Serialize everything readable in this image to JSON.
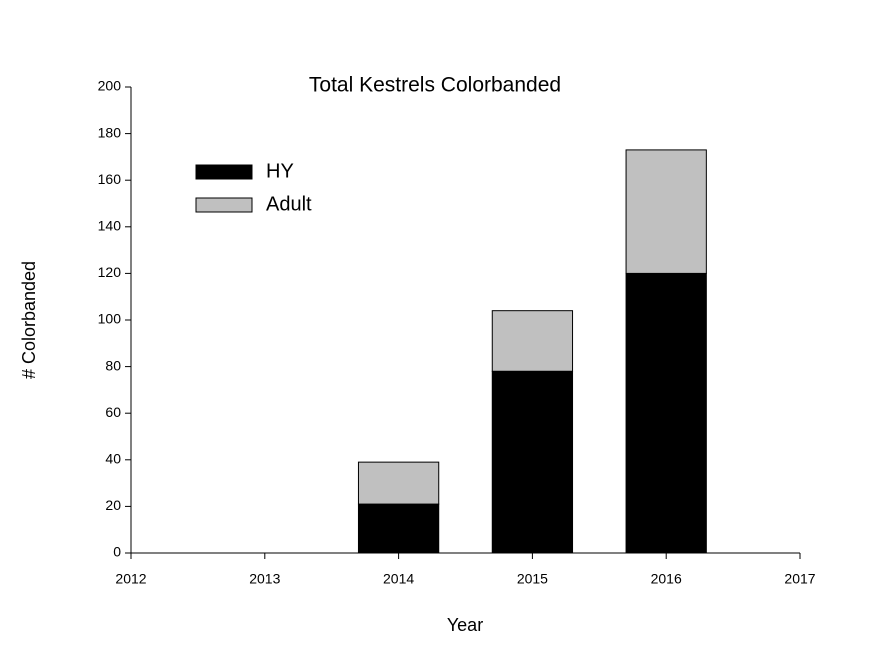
{
  "chart_data": {
    "type": "bar",
    "stacked": true,
    "title": "Total Kestrels Colorbanded",
    "x_label": "Year",
    "y_label": "# Colorbanded",
    "x": [
      2014,
      2015,
      2016
    ],
    "series": [
      {
        "name": "HY",
        "color": "#000000",
        "values": [
          21,
          78,
          120
        ]
      },
      {
        "name": "Adult",
        "color": "#c0c0c0",
        "values": [
          18,
          26,
          53
        ]
      }
    ],
    "xlim": [
      2012,
      2017
    ],
    "xticks": [
      2012,
      2013,
      2014,
      2015,
      2016,
      2017
    ],
    "ylim": [
      0,
      200
    ],
    "yticks": [
      0,
      20,
      40,
      60,
      80,
      100,
      120,
      140,
      160,
      180,
      200
    ],
    "grid": false,
    "legend": "upper left"
  }
}
